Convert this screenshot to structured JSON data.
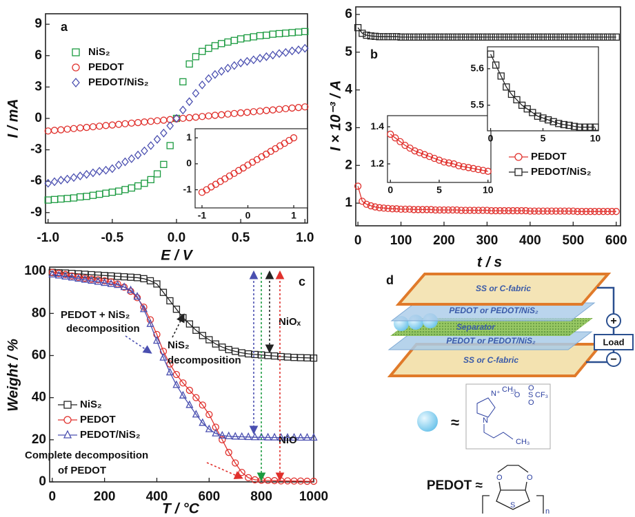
{
  "chart_data": [
    {
      "type": "scatter",
      "label": "a",
      "xlabel": "E / V",
      "ylabel": "I / mA",
      "xlim": [
        -1.02,
        1.02
      ],
      "ylim": [
        -10,
        10
      ],
      "xticks": [
        {
          "value": -1,
          "label": "-1.0"
        },
        -0.5,
        {
          "value": 0,
          "label": "0.0"
        },
        0.5,
        {
          "value": 1,
          "label": "1.0"
        }
      ],
      "yticks": [
        -9,
        -6,
        -3,
        0,
        3,
        6,
        9
      ],
      "legend": "upper left",
      "x": [
        -1,
        -0.95,
        -0.9,
        -0.85,
        -0.8,
        -0.75,
        -0.7,
        -0.65,
        -0.6,
        -0.55,
        -0.5,
        -0.45,
        -0.4,
        -0.35,
        -0.3,
        -0.25,
        -0.2,
        -0.15,
        -0.1,
        -0.05,
        0,
        0.05,
        0.1,
        0.15,
        0.2,
        0.25,
        0.3,
        0.35,
        0.4,
        0.45,
        0.5,
        0.55,
        0.6,
        0.65,
        0.7,
        0.75,
        0.8,
        0.85,
        0.9,
        0.95,
        1
      ],
      "series": [
        {
          "name": "NiS₂",
          "color": "#1a9a3f",
          "marker": "square",
          "values": [
            -7.8,
            -7.75,
            -7.7,
            -7.65,
            -7.6,
            -7.5,
            -7.45,
            -7.35,
            -7.25,
            -7.15,
            -7.05,
            -6.95,
            -6.8,
            -6.65,
            -6.45,
            -6.2,
            -5.85,
            -5.3,
            -4.4,
            -2.6,
            0,
            3.5,
            5.2,
            5.9,
            6.4,
            6.7,
            6.95,
            7.15,
            7.3,
            7.45,
            7.6,
            7.7,
            7.8,
            7.9,
            7.95,
            8.05,
            8.1,
            8.15,
            8.2,
            8.25,
            8.3
          ]
        },
        {
          "name": "PEDOT",
          "color": "#e0302c",
          "marker": "circle",
          "values": [
            -1.2,
            -1.14,
            -1.09,
            -1.03,
            -0.97,
            -0.91,
            -0.86,
            -0.8,
            -0.74,
            -0.68,
            -0.63,
            -0.57,
            -0.51,
            -0.45,
            -0.4,
            -0.34,
            -0.28,
            -0.22,
            -0.17,
            -0.11,
            -0.05,
            0.01,
            0.07,
            0.12,
            0.18,
            0.24,
            0.3,
            0.35,
            0.41,
            0.47,
            0.53,
            0.58,
            0.64,
            0.7,
            0.76,
            0.81,
            0.87,
            0.93,
            0.99,
            1.04,
            1.1
          ]
        },
        {
          "name": "PEDOT/NiS₂",
          "color": "#4a4fb0",
          "marker": "diamond",
          "values": [
            -6.2,
            -6.05,
            -5.9,
            -5.8,
            -5.65,
            -5.5,
            -5.35,
            -5.2,
            -5.05,
            -4.95,
            -4.8,
            -4.45,
            -4.15,
            -3.85,
            -3.5,
            -3.1,
            -2.6,
            -2.0,
            -1.4,
            -0.7,
            0,
            0.8,
            1.6,
            2.4,
            3.2,
            3.8,
            4.2,
            4.5,
            4.8,
            5.05,
            5.3,
            5.45,
            5.6,
            5.75,
            5.9,
            6.05,
            6.2,
            6.3,
            6.45,
            6.55,
            6.7
          ]
        }
      ],
      "insets": [
        {
          "xlim": [
            -1.15,
            1.3
          ],
          "ylim": [
            -1.7,
            1.35
          ],
          "xticks": [
            -1,
            0,
            1
          ],
          "yticks": [
            -1,
            0,
            1
          ],
          "color": "#e0302c",
          "marker": "circle",
          "x": [
            -1,
            -0.9,
            -0.8,
            -0.7,
            -0.6,
            -0.5,
            -0.4,
            -0.3,
            -0.2,
            -0.1,
            0,
            0.1,
            0.2,
            0.3,
            0.4,
            0.5,
            0.6,
            0.7,
            0.8,
            0.9,
            1
          ],
          "values": [
            -1.1,
            -1.0,
            -0.89,
            -0.79,
            -0.68,
            -0.58,
            -0.47,
            -0.37,
            -0.26,
            -0.16,
            -0.05,
            0.06,
            0.16,
            0.27,
            0.37,
            0.48,
            0.58,
            0.69,
            0.79,
            0.9,
            1.0
          ]
        }
      ]
    },
    {
      "type": "line",
      "label": "b",
      "xlabel": "t / s",
      "ylabel": "I × 10⁻³ / A",
      "xlim": [
        -5,
        610
      ],
      "ylim": [
        0.4,
        6.2
      ],
      "xticks": [
        0,
        100,
        200,
        300,
        400,
        500,
        600
      ],
      "yticks": [
        1,
        2,
        3,
        4,
        5,
        6
      ],
      "legend": "lower right",
      "x": [
        0,
        10,
        20,
        30,
        40,
        50,
        60,
        70,
        80,
        90,
        100,
        110,
        120,
        130,
        140,
        150,
        160,
        170,
        180,
        190,
        200,
        210,
        220,
        230,
        240,
        250,
        260,
        270,
        280,
        290,
        300,
        310,
        320,
        330,
        340,
        350,
        360,
        370,
        380,
        390,
        400,
        410,
        420,
        430,
        440,
        450,
        460,
        470,
        480,
        490,
        500,
        510,
        520,
        530,
        540,
        550,
        560,
        570,
        580,
        590,
        600
      ],
      "series": [
        {
          "name": "PEDOT",
          "color": "#e0302c",
          "marker": "circle",
          "values": [
            1.45,
            1.05,
            0.97,
            0.93,
            0.9,
            0.88,
            0.87,
            0.86,
            0.85,
            0.85,
            0.84,
            0.84,
            0.84,
            0.83,
            0.83,
            0.83,
            0.83,
            0.83,
            0.82,
            0.82,
            0.82,
            0.82,
            0.82,
            0.82,
            0.81,
            0.81,
            0.81,
            0.81,
            0.81,
            0.81,
            0.81,
            0.8,
            0.8,
            0.8,
            0.8,
            0.8,
            0.8,
            0.8,
            0.8,
            0.8,
            0.79,
            0.79,
            0.79,
            0.79,
            0.79,
            0.79,
            0.79,
            0.79,
            0.79,
            0.79,
            0.79,
            0.78,
            0.78,
            0.78,
            0.78,
            0.78,
            0.78,
            0.78,
            0.78,
            0.78,
            0.78
          ]
        },
        {
          "name": "PEDOT/NiS₂",
          "color": "#222222",
          "marker": "square",
          "values": [
            5.65,
            5.5,
            5.45,
            5.43,
            5.42,
            5.41,
            5.41,
            5.41,
            5.41,
            5.41,
            5.4,
            5.4,
            5.4,
            5.4,
            5.4,
            5.4,
            5.4,
            5.4,
            5.4,
            5.4,
            5.4,
            5.4,
            5.4,
            5.4,
            5.4,
            5.4,
            5.4,
            5.4,
            5.4,
            5.4,
            5.4,
            5.4,
            5.4,
            5.4,
            5.4,
            5.4,
            5.4,
            5.4,
            5.4,
            5.4,
            5.4,
            5.4,
            5.4,
            5.4,
            5.4,
            5.4,
            5.4,
            5.4,
            5.4,
            5.4,
            5.4,
            5.4,
            5.4,
            5.4,
            5.4,
            5.4,
            5.4,
            5.4,
            5.4,
            5.4,
            5.4
          ]
        }
      ],
      "insets": [
        {
          "xlim": [
            -0.3,
            10.3
          ],
          "ylim": [
            1.1,
            1.46
          ],
          "xticks": [
            0,
            5,
            10
          ],
          "yticks": [
            1.2,
            1.4
          ],
          "color": "#e0302c",
          "marker": "circle",
          "x": [
            0,
            0.5,
            1,
            1.5,
            2,
            2.5,
            3,
            3.5,
            4,
            4.5,
            5,
            5.5,
            6,
            6.5,
            7,
            7.5,
            8,
            8.5,
            9,
            9.5,
            10
          ],
          "values": [
            1.36,
            1.34,
            1.32,
            1.3,
            1.285,
            1.27,
            1.26,
            1.25,
            1.24,
            1.23,
            1.22,
            1.21,
            1.205,
            1.2,
            1.19,
            1.185,
            1.18,
            1.175,
            1.17,
            1.165,
            1.16
          ]
        },
        {
          "xlim": [
            -0.3,
            10.3
          ],
          "ylim": [
            5.43,
            5.66
          ],
          "xticks": [
            0,
            5,
            10
          ],
          "yticks": [
            5.5,
            5.6
          ],
          "color": "#222222",
          "marker": "square",
          "x": [
            0,
            0.5,
            1,
            1.5,
            2,
            2.5,
            3,
            3.5,
            4,
            4.5,
            5,
            5.5,
            6,
            6.5,
            7,
            7.5,
            8,
            8.5,
            9,
            9.5,
            10
          ],
          "values": [
            5.64,
            5.61,
            5.58,
            5.55,
            5.53,
            5.515,
            5.5,
            5.49,
            5.48,
            5.47,
            5.465,
            5.46,
            5.455,
            5.45,
            5.447,
            5.445,
            5.442,
            5.44,
            5.44,
            5.44,
            5.44
          ]
        }
      ]
    },
    {
      "type": "line",
      "label": "c",
      "xlabel": "T / °C",
      "ylabel": "Weight / %",
      "xlim": [
        -10,
        1000
      ],
      "ylim": [
        0,
        102
      ],
      "xticks": [
        0,
        200,
        400,
        600,
        800,
        1000
      ],
      "yticks": [
        0,
        20,
        40,
        60,
        80,
        100
      ],
      "legend": "lower left",
      "x": [
        0,
        25,
        50,
        75,
        100,
        125,
        150,
        175,
        200,
        225,
        250,
        275,
        300,
        325,
        350,
        375,
        400,
        425,
        450,
        475,
        500,
        525,
        550,
        575,
        600,
        625,
        650,
        675,
        700,
        725,
        750,
        775,
        800,
        825,
        850,
        875,
        900,
        925,
        950,
        975,
        1000
      ],
      "series": [
        {
          "name": "NiS₂",
          "color": "#222222",
          "marker": "square",
          "values": [
            99.5,
            99.3,
            99.2,
            99,
            98.8,
            98.6,
            98.4,
            98.2,
            98,
            97.8,
            97.6,
            97.4,
            97.2,
            97,
            96.5,
            95.5,
            94,
            90,
            86,
            82,
            78,
            75,
            72,
            69.5,
            67.5,
            65.5,
            64,
            62.8,
            62,
            61.3,
            60.8,
            60.5,
            60.3,
            60,
            59.8,
            59.5,
            59.3,
            59.1,
            59,
            58.9,
            58.8
          ]
        },
        {
          "name": "PEDOT",
          "color": "#e0302c",
          "marker": "circle",
          "values": [
            99.5,
            99,
            98.5,
            97.8,
            97.2,
            96.7,
            96.3,
            96,
            95.5,
            95,
            94,
            92.5,
            90.5,
            87.5,
            83,
            77,
            70,
            62,
            56,
            51,
            47,
            43.5,
            40,
            36.5,
            32,
            26,
            20,
            14,
            9,
            4.5,
            2,
            1,
            0.8,
            0.7,
            0.6,
            0.5,
            0.5,
            0.4,
            0.4,
            0.3,
            0.3
          ]
        },
        {
          "name": "PEDOT/NiS₂",
          "color": "#4a4fb0",
          "marker": "triangle",
          "values": [
            98.5,
            98,
            97.5,
            97,
            96.5,
            96,
            95.5,
            95,
            94.5,
            94,
            93.5,
            92.5,
            91,
            88,
            82,
            75,
            67,
            59,
            52,
            46,
            41,
            36.5,
            32,
            28,
            25,
            23,
            22,
            21.7,
            21.5,
            21.4,
            21.3,
            21.2,
            21.2,
            21.1,
            21.1,
            21,
            21,
            21,
            21,
            21,
            21
          ]
        }
      ],
      "annotations": [
        {
          "text": "PEDOT + NiS₂",
          "color": "#4a4fb0"
        },
        {
          "text": "decomposition",
          "color": "#4a4fb0"
        },
        {
          "text": "NiS₂",
          "color": "#222222"
        },
        {
          "text": "decomposition",
          "color": "#222222"
        },
        {
          "text": "NiOₓ",
          "color": "#222222"
        },
        {
          "text": "NiO",
          "color": "#4a4fb0"
        },
        {
          "text": "Complete decomposition",
          "color": "#e0302c"
        },
        {
          "text": "of PEDOT",
          "color": "#e0302c"
        }
      ]
    }
  ],
  "diagram": {
    "label": "d",
    "top_plate": "SS or C-fabric",
    "top_layer": "PEDOT or PEDOT/NiS₂",
    "separator": "Separator",
    "bottom_layer": "PEDOT or PEDOT/NiS₂",
    "bottom_plate": "SS or C-fabric",
    "load": "Load",
    "plus": "+",
    "minus": "−",
    "approx": "≈",
    "n_plus": "N⁺",
    "ch3_top": "CH₃",
    "n": "N",
    "ch3_bottom": "CH₃",
    "anion_o": "⁻O",
    "anion_s": "S",
    "anion_cf3": "CF₃",
    "anion_o_top": "O",
    "anion_o_bottom": "O",
    "pedot": "PEDOT ≈",
    "pedot_o1": "O",
    "pedot_o2": "O",
    "pedot_s": "S",
    "pedot_n": "n"
  }
}
